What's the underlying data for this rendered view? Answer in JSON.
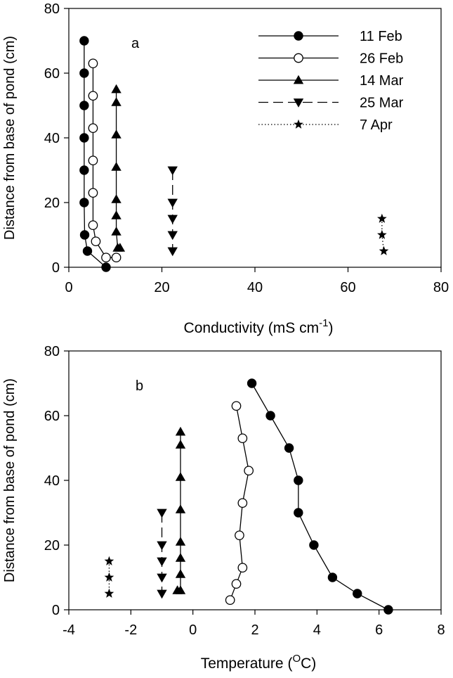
{
  "chart_data": [
    {
      "type": "line",
      "panel_label": "a",
      "xlabel": "Conductivity  (mS cm",
      "xlabel_sup": "-1",
      "xlabel_end": ")",
      "ylabel": "Distance from base of pond (cm)",
      "xlim": [
        0,
        80
      ],
      "ylim": [
        0,
        80
      ],
      "x_ticks": [
        0,
        20,
        40,
        60,
        80
      ],
      "y_ticks": [
        0,
        20,
        40,
        60,
        80
      ],
      "x_tick_labels": [
        "0",
        "20",
        "40",
        "60",
        "80"
      ],
      "y_tick_labels": [
        "0",
        "20",
        "40",
        "60",
        "80"
      ],
      "series": [
        {
          "name": "11 Feb",
          "marker": "circle-filled",
          "line": "solid",
          "x": [
            3.3,
            3.3,
            3.3,
            3.3,
            3.3,
            3.3,
            3.4,
            4.0,
            8.0
          ],
          "y": [
            70,
            60,
            50,
            40,
            30,
            20,
            10,
            5,
            0
          ]
        },
        {
          "name": "26 Feb",
          "marker": "circle-open",
          "line": "solid",
          "x": [
            5.2,
            5.2,
            5.2,
            5.2,
            5.2,
            5.2,
            5.8,
            8.0,
            10.2
          ],
          "y": [
            63,
            53,
            43,
            33,
            23,
            13,
            8,
            3,
            3
          ]
        },
        {
          "name": "14 Mar",
          "marker": "triangle-up",
          "line": "solid",
          "x": [
            10.2,
            10.2,
            10.2,
            10.2,
            10.2,
            10.2,
            10.2,
            10.5,
            11.0
          ],
          "y": [
            55,
            51,
            41,
            31,
            21,
            16,
            11,
            6,
            6
          ]
        },
        {
          "name": "25 Mar",
          "marker": "triangle-down",
          "line": "dashed",
          "x": [
            22.3,
            22.3,
            22.3,
            22.3,
            22.3
          ],
          "y": [
            30,
            20,
            15,
            10,
            5
          ]
        },
        {
          "name": "7 Apr",
          "marker": "star",
          "line": "dotted",
          "x": [
            67.3,
            67.3,
            67.7
          ],
          "y": [
            15,
            10,
            5
          ]
        }
      ]
    },
    {
      "type": "line",
      "panel_label": "b",
      "xlabel": "Temperature (",
      "xlabel_sup": "O",
      "xlabel_end": "C)",
      "ylabel": "Distance from base of pond (cm)",
      "xlim": [
        -4,
        8
      ],
      "ylim": [
        0,
        80
      ],
      "x_ticks": [
        -4,
        -2,
        0,
        2,
        4,
        6,
        8
      ],
      "y_ticks": [
        0,
        20,
        40,
        60,
        80
      ],
      "x_tick_labels": [
        "-4",
        "-2",
        "0",
        "2",
        "4",
        "6",
        "8"
      ],
      "y_tick_labels": [
        "0",
        "20",
        "40",
        "60",
        "80"
      ],
      "series": [
        {
          "name": "11 Feb",
          "marker": "circle-filled",
          "line": "solid",
          "x": [
            1.9,
            2.5,
            3.1,
            3.4,
            3.4,
            3.9,
            4.5,
            5.3,
            6.3
          ],
          "y": [
            70,
            60,
            50,
            40,
            30,
            20,
            10,
            5,
            0
          ]
        },
        {
          "name": "26 Feb",
          "marker": "circle-open",
          "line": "solid",
          "x": [
            1.4,
            1.6,
            1.8,
            1.6,
            1.5,
            1.6,
            1.4,
            1.2
          ],
          "y": [
            63,
            53,
            43,
            33,
            23,
            13,
            8,
            3
          ]
        },
        {
          "name": "14 Mar",
          "marker": "triangle-up",
          "line": "solid",
          "x": [
            -0.4,
            -0.4,
            -0.4,
            -0.4,
            -0.4,
            -0.4,
            -0.4,
            -0.4,
            -0.5
          ],
          "y": [
            55,
            51,
            41,
            31,
            21,
            16,
            11,
            6,
            6
          ]
        },
        {
          "name": "25 Mar",
          "marker": "triangle-down",
          "line": "dashed",
          "x": [
            -1.0,
            -1.0,
            -1.0,
            -1.0,
            -1.0
          ],
          "y": [
            30,
            20,
            15,
            10,
            5
          ]
        },
        {
          "name": "7 Apr",
          "marker": "star",
          "line": "dotted",
          "x": [
            -2.7,
            -2.7,
            -2.7
          ],
          "y": [
            15,
            10,
            5
          ]
        }
      ]
    }
  ],
  "legend": {
    "entries": [
      "11 Feb",
      "26 Feb",
      "14 Mar",
      "25 Mar",
      "7 Apr"
    ],
    "placement": "top-right of panel a"
  }
}
